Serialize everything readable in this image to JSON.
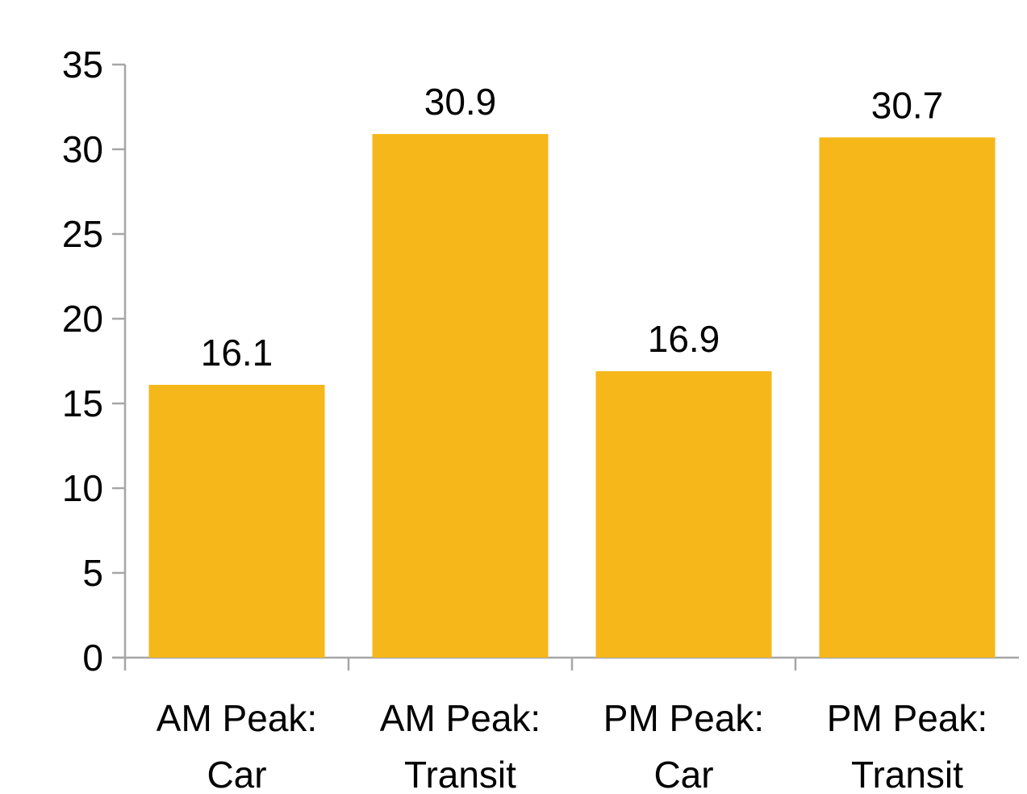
{
  "chart_data": {
    "type": "bar",
    "categories": [
      [
        "AM Peak:",
        "Car"
      ],
      [
        "AM Peak:",
        "Transit"
      ],
      [
        "PM Peak:",
        "Car"
      ],
      [
        "PM Peak:",
        "Transit"
      ]
    ],
    "values": [
      16.1,
      30.9,
      16.9,
      30.7
    ],
    "data_labels": [
      "16.1",
      "30.9",
      "16.9",
      "30.7"
    ],
    "y_ticks": [
      "0",
      "5",
      "10",
      "15",
      "20",
      "25",
      "30",
      "35"
    ],
    "ylim": [
      0,
      35
    ],
    "bar_color": "#F5B719",
    "axis_color": "#A6A6A6",
    "grid": false,
    "legend": "none"
  }
}
